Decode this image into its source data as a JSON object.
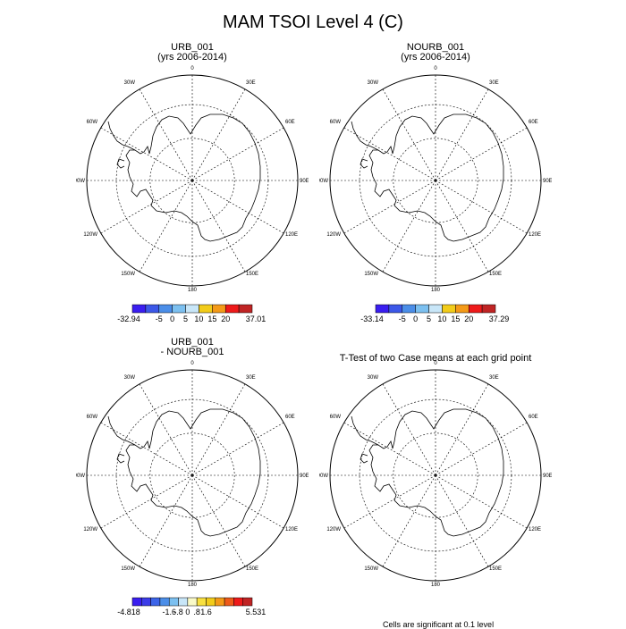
{
  "figure": {
    "title": "MAM TSOI Level 4 (C)"
  },
  "map_labels": {
    "lon_top": "0",
    "lon_bottom": "180",
    "lon_left": "90W",
    "lon_right": "90E",
    "lon_30w": "30W",
    "lon_30e": "30E",
    "lon_60w": "60W",
    "lon_60e": "60E",
    "lon_120w": "120W",
    "lon_120e": "120E",
    "lon_150w": "150W",
    "lon_150e": "150E"
  },
  "panels": [
    {
      "title_line1": "URB_001",
      "title_line2": "(yrs 2006-2014)"
    },
    {
      "title_line1": "NOURB_001",
      "title_line2": "(yrs 2006-2014)"
    },
    {
      "title_line1": "URB_001",
      "title_line2": "- NOURB_001"
    },
    {
      "title_line1": "T-Test of two Case means at each grid point",
      "title_line2": ""
    }
  ],
  "colorbars": [
    {
      "min_label": "-32.94",
      "max_label": "37.01",
      "tick_labels": [
        "-5",
        "0",
        "5",
        "10",
        "15",
        "20"
      ],
      "colors": [
        "#3a1ef0",
        "#3c58e8",
        "#4b8ee8",
        "#7cc0f0",
        "#c8e6f8",
        "#f2cc1a",
        "#f49a18",
        "#ee1a1a",
        "#c02424"
      ]
    },
    {
      "min_label": "-33.14",
      "max_label": "37.29",
      "tick_labels": [
        "-5",
        "0",
        "5",
        "10",
        "15",
        "20"
      ],
      "colors": [
        "#3a1ef0",
        "#3c58e8",
        "#4b8ee8",
        "#7cc0f0",
        "#c8e6f8",
        "#f2cc1a",
        "#f49a18",
        "#ee1a1a",
        "#c02424"
      ]
    },
    {
      "min_label": "-4.818",
      "max_label": "5.531",
      "tick_labels": [
        "-1.6",
        "-.8",
        "0",
        ".8",
        "1.6"
      ],
      "colors": [
        "#3a1ef0",
        "#3c3ce8",
        "#3c64e8",
        "#4b8ee8",
        "#7cc0f0",
        "#c8e6f8",
        "#fafac8",
        "#f8e040",
        "#f2cc1a",
        "#f49a18",
        "#ee5a1a",
        "#ee1a1a",
        "#c02424"
      ]
    }
  ],
  "footnote": "Cells are significant at 0.1 level"
}
